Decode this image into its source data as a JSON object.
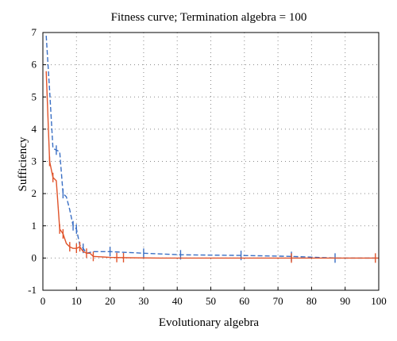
{
  "chart_data": {
    "type": "line",
    "title": "Fitness curve; Termination algebra = 100",
    "xlabel": "Evolutionary algebra",
    "ylabel": "Sufficiency",
    "xlim": [
      0,
      100
    ],
    "ylim": [
      -1,
      7
    ],
    "xticks": [
      0,
      10,
      20,
      30,
      40,
      50,
      60,
      70,
      80,
      90,
      100
    ],
    "yticks": [
      -1,
      0,
      1,
      2,
      3,
      4,
      5,
      6,
      7
    ],
    "grid": true,
    "grid_style": "dotted",
    "legend": "none",
    "series": [
      {
        "color": "#3a6fc4",
        "style": "dashed",
        "x": [
          1,
          2,
          3,
          4,
          5,
          6,
          7,
          8,
          9,
          10,
          11,
          12,
          13,
          15,
          20,
          30,
          41,
          59,
          74,
          87,
          99
        ],
        "y": [
          6.9,
          5.2,
          3.4,
          3.35,
          3.3,
          2.0,
          1.9,
          1.5,
          1.0,
          0.9,
          0.4,
          0.3,
          0.15,
          0.2,
          0.2,
          0.15,
          0.1,
          0.08,
          0.05,
          0.0,
          0.0
        ],
        "markers_x": [
          4,
          6,
          9,
          10,
          12,
          20,
          30,
          41,
          59,
          74,
          87
        ]
      },
      {
        "color": "#e0532a",
        "style": "solid",
        "x": [
          1,
          2,
          3,
          4,
          5,
          6,
          7,
          8,
          9,
          10,
          11,
          12,
          13,
          14,
          15,
          20,
          25,
          35,
          50,
          70,
          100
        ],
        "y": [
          5.8,
          3.0,
          2.5,
          2.4,
          0.9,
          0.75,
          0.45,
          0.35,
          0.3,
          0.3,
          0.35,
          0.2,
          0.15,
          0.15,
          0.05,
          0.02,
          0.01,
          0.0,
          0.0,
          0.0,
          0.0
        ],
        "markers_x": [
          2,
          3,
          5,
          6,
          8,
          10,
          11,
          13,
          15,
          22,
          24,
          74,
          99
        ]
      }
    ]
  }
}
